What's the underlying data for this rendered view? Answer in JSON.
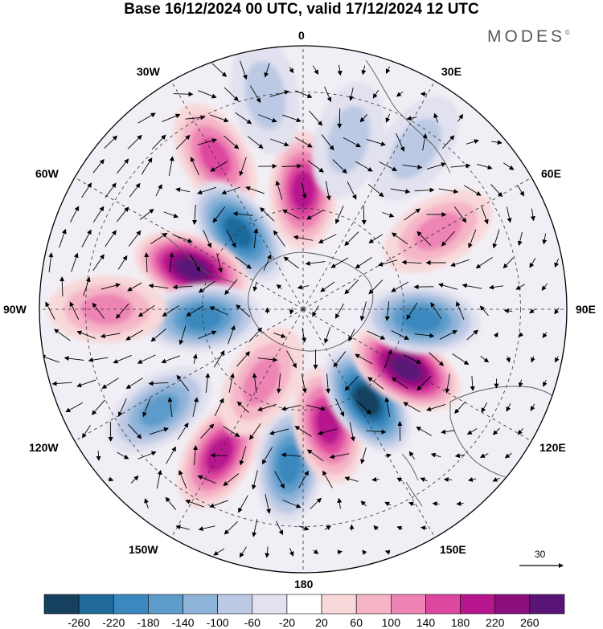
{
  "title": "Base 16/12/2024 00 UTC, valid 17/12/2024 12 UTC",
  "logo": {
    "text": "MODES",
    "mark": "©"
  },
  "longitude_labels": {
    "top": "0",
    "top_left": "30W",
    "top_right": "30E",
    "upper_left": "60W",
    "upper_right": "60E",
    "left": "90W",
    "right": "90E",
    "lower_left": "120W",
    "lower_right": "120E",
    "bottom_left": "150W",
    "bottom_right": "150E",
    "bottom": "180"
  },
  "reference_vector": {
    "value": "30"
  },
  "colorbar": {
    "ticks": [
      "-260",
      "-220",
      "-180",
      "-140",
      "-100",
      "-60",
      "-20",
      "20",
      "60",
      "100",
      "140",
      "180",
      "220",
      "260"
    ],
    "colors": [
      "#15415e",
      "#1f6a9b",
      "#3a88bf",
      "#5d9cca",
      "#8eb4d9",
      "#bcc9e4",
      "#e1e1ef",
      "#ffffff",
      "#f8d8d9",
      "#f5b5c7",
      "#ee84b4",
      "#dd479f",
      "#b8168e",
      "#8c0f7e",
      "#5a1478"
    ]
  },
  "map_features": {
    "projection": "south-polar-stereographic",
    "anomalies": [
      {
        "lon": 0,
        "lat": -55,
        "value": 200
      },
      {
        "lon": -30,
        "lat": -40,
        "value": 150
      },
      {
        "lon": -40,
        "lat": -60,
        "value": -230
      },
      {
        "lon": -70,
        "lat": -55,
        "value": 260
      },
      {
        "lon": -95,
        "lat": -60,
        "value": -170
      },
      {
        "lon": -90,
        "lat": -35,
        "value": 110
      },
      {
        "lon": -125,
        "lat": -40,
        "value": -160
      },
      {
        "lon": -150,
        "lat": -42,
        "value": 170
      },
      {
        "lon": -175,
        "lat": -45,
        "value": -190
      },
      {
        "lon": 168,
        "lat": -55,
        "value": 190
      },
      {
        "lon": 145,
        "lat": -57,
        "value": -250
      },
      {
        "lon": 120,
        "lat": -55,
        "value": 250
      },
      {
        "lon": 95,
        "lat": -55,
        "value": -200
      },
      {
        "lon": 60,
        "lat": -45,
        "value": 120
      },
      {
        "lon": 15,
        "lat": -40,
        "value": -80
      },
      {
        "lon": 35,
        "lat": -35,
        "value": -60
      },
      {
        "lon": -150,
        "lat": -65,
        "value": 90
      },
      {
        "lon": -10,
        "lat": -30,
        "value": -70
      }
    ]
  }
}
